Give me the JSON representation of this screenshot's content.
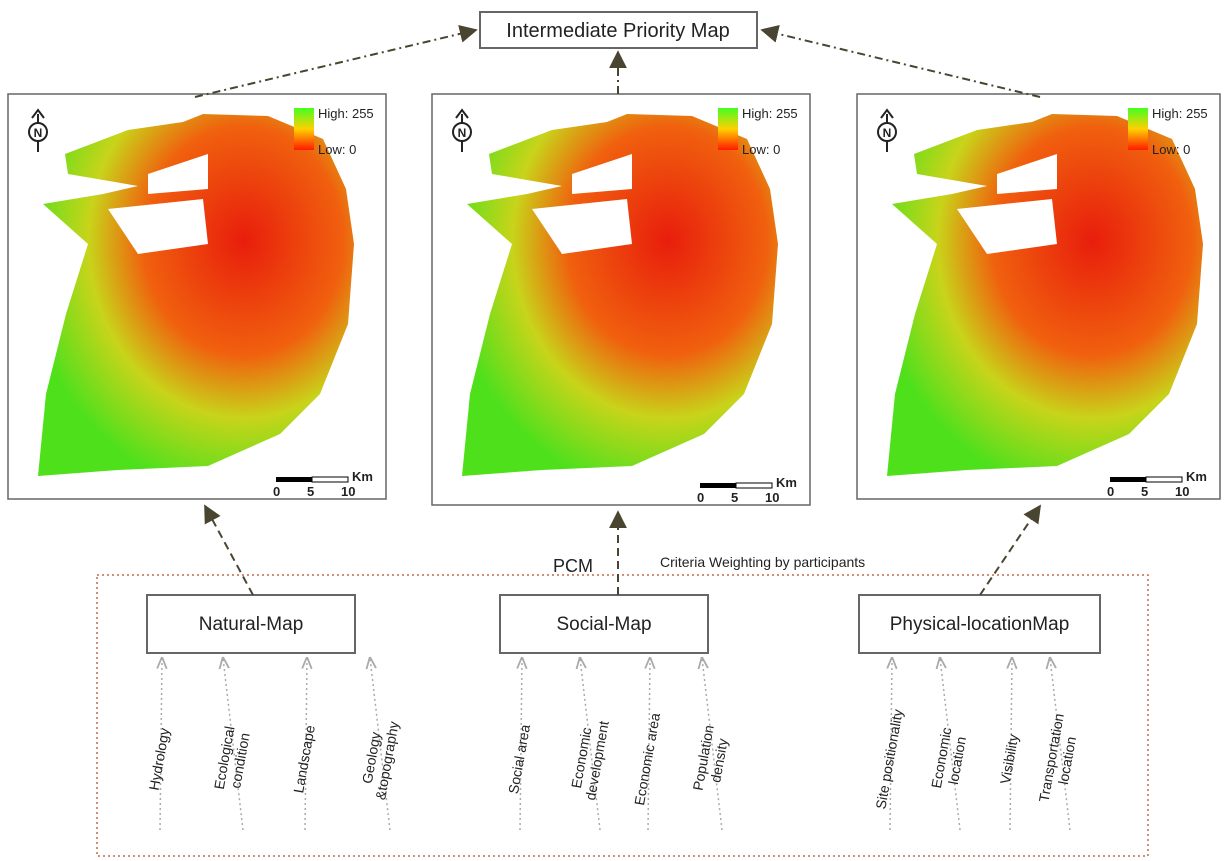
{
  "top": {
    "title": "Intermediate Priority Map"
  },
  "legend": {
    "high": "High: 255",
    "low": "Low: 0",
    "north": "N",
    "unit": "Km",
    "scale_ticks": [
      "0",
      "5",
      "10"
    ]
  },
  "pcm": {
    "label": "PCM",
    "caption": "Criteria Weighting by participants"
  },
  "groups": [
    {
      "name": "Natural-Map",
      "criteria": [
        [
          "Hydrology"
        ],
        [
          "Ecological",
          "condition"
        ],
        [
          "Landscape"
        ],
        [
          "Geology",
          "&topography"
        ]
      ]
    },
    {
      "name": "Social-Map",
      "criteria": [
        [
          "Social area"
        ],
        [
          "Economic",
          "development"
        ],
        [
          "Economic area"
        ],
        [
          "Population",
          "density"
        ]
      ]
    },
    {
      "name": "Physical-locationMap",
      "criteria": [
        [
          "Site positionality"
        ],
        [
          "Economic",
          "location"
        ],
        [
          "Visibility"
        ],
        [
          "Transportation",
          "location"
        ]
      ]
    }
  ]
}
